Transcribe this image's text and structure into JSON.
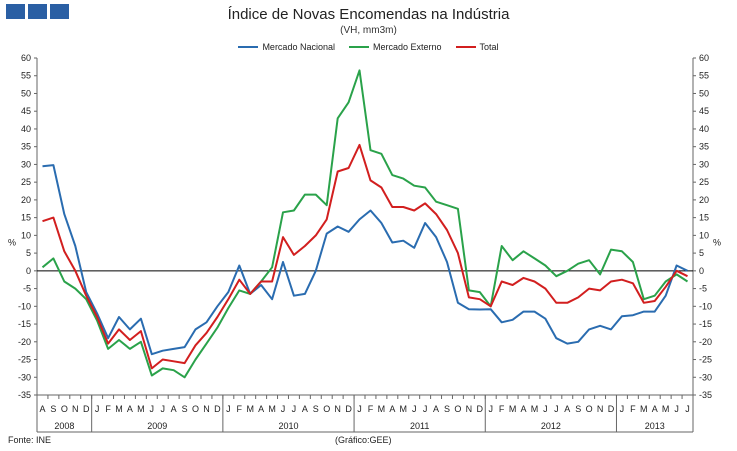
{
  "header": {
    "title": "Índice de Novas Encomendas na Indústria",
    "subtitle": "(VH, mm3m)"
  },
  "footer": {
    "source": "Fonte: INE",
    "credit": "(Gráfico:GEE)"
  },
  "colors": {
    "nacional": "#2a6cb0",
    "externo": "#2aa24a",
    "total": "#d21f1f",
    "logo": "#2a5fa4"
  },
  "chart_data": {
    "type": "line",
    "title": "Índice de Novas Encomendas na Indústria",
    "subtitle": "(VH, mm3m)",
    "ylabel_left": "%",
    "ylabel_right": "%",
    "ylim": [
      -35,
      60
    ],
    "yticks": [
      -35,
      -30,
      -25,
      -20,
      -15,
      -10,
      -5,
      0,
      5,
      10,
      15,
      20,
      25,
      30,
      35,
      40,
      45,
      50,
      55,
      60
    ],
    "grid": false,
    "legend_position": "top-center",
    "month_labels": [
      "A",
      "S",
      "O",
      "N",
      "D",
      "J",
      "F",
      "M",
      "A",
      "M",
      "J",
      "J",
      "A",
      "S",
      "O",
      "N",
      "D",
      "J",
      "F",
      "M",
      "A",
      "M",
      "J",
      "J",
      "A",
      "S",
      "O",
      "N",
      "D",
      "J",
      "F",
      "M",
      "A",
      "M",
      "J",
      "J",
      "A",
      "S",
      "O",
      "N",
      "D",
      "J",
      "F",
      "M",
      "A",
      "M",
      "J",
      "J",
      "A",
      "S",
      "O",
      "N",
      "D",
      "J",
      "F",
      "M",
      "A",
      "M",
      "J",
      "J"
    ],
    "years": [
      {
        "label": "2008",
        "start": 0,
        "end": 5
      },
      {
        "label": "2009",
        "start": 5,
        "end": 17
      },
      {
        "label": "2010",
        "start": 17,
        "end": 29
      },
      {
        "label": "2011",
        "start": 29,
        "end": 41
      },
      {
        "label": "2012",
        "start": 41,
        "end": 53
      },
      {
        "label": "2013",
        "start": 53,
        "end": 60
      }
    ],
    "series": [
      {
        "name": "Mercado Nacional",
        "color": "#2a6cb0",
        "values": [
          29.5,
          29.8,
          16,
          7,
          -6,
          -12,
          -19,
          -13,
          -16.5,
          -13.5,
          -23.5,
          -22.5,
          -22,
          -21.5,
          -16.5,
          -14.5,
          -10,
          -6,
          1.5,
          -6.5,
          -4,
          -8,
          2.5,
          -7,
          -6.5,
          0,
          10.5,
          12.5,
          11,
          14.5,
          17,
          13.5,
          8,
          8.5,
          6.5,
          13.5,
          9.5,
          2.5,
          -9,
          -10.8,
          -10.9,
          -10.8,
          -14.5,
          -13.8,
          -11.5,
          -11.5,
          -13.5,
          -19,
          -20.5,
          -20,
          -16.5,
          -15.5,
          -16.5,
          -12.8,
          -12.5,
          -11.5,
          -11.5,
          -7,
          1.5,
          0
        ]
      },
      {
        "name": "Mercado Externo",
        "color": "#2aa24a",
        "values": [
          1,
          3.5,
          -3,
          -5,
          -8,
          -14,
          -22,
          -19.5,
          -22,
          -20,
          -29.5,
          -27.5,
          -28,
          -30,
          -25,
          -20.5,
          -16,
          -10.5,
          -5.5,
          -6.5,
          -3,
          1,
          16.5,
          17,
          21.5,
          21.5,
          18.5,
          43,
          47.5,
          56.5,
          34,
          33,
          27,
          26,
          24,
          23.5,
          19.5,
          18.5,
          17.5,
          -5.5,
          -6,
          -10,
          7,
          3,
          5.5,
          3.5,
          1.5,
          -1.5,
          0,
          2,
          3,
          -1,
          6,
          5.5,
          2.5,
          -8,
          -7,
          -3,
          -1,
          -3
        ]
      },
      {
        "name": "Total",
        "color": "#d21f1f",
        "values": [
          14,
          15,
          5.5,
          0,
          -7,
          -13,
          -20.5,
          -16.5,
          -19.5,
          -17,
          -27.5,
          -25,
          -25.5,
          -26,
          -21,
          -17.5,
          -13,
          -8,
          -2.5,
          -6.5,
          -3,
          -3,
          9.5,
          4.5,
          7,
          10,
          14.5,
          28,
          29,
          35.5,
          25.5,
          23.5,
          18,
          18,
          17,
          19,
          16,
          11.5,
          5,
          -7.5,
          -8,
          -10,
          -3,
          -4,
          -2,
          -3,
          -5,
          -9,
          -9,
          -7.5,
          -5,
          -5.5,
          -3,
          -2.5,
          -3.5,
          -9,
          -8.5,
          -4.5,
          0,
          -1.5
        ]
      }
    ]
  }
}
